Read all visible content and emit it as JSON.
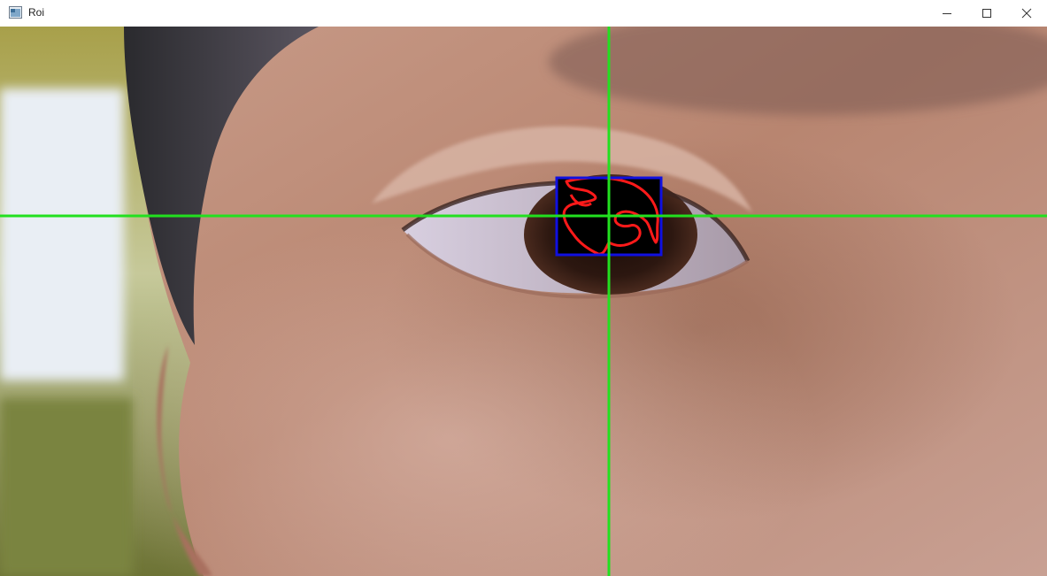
{
  "window": {
    "title": "Roi",
    "controls": {
      "minimize": "minimize-icon",
      "maximize": "maximize-icon",
      "close": "close-icon"
    }
  },
  "overlay": {
    "crosshair_color": "#22e01f",
    "roi_box_color": "#1010e0",
    "contour_color": "#ff1a1a",
    "pupil_color": "#000000"
  }
}
